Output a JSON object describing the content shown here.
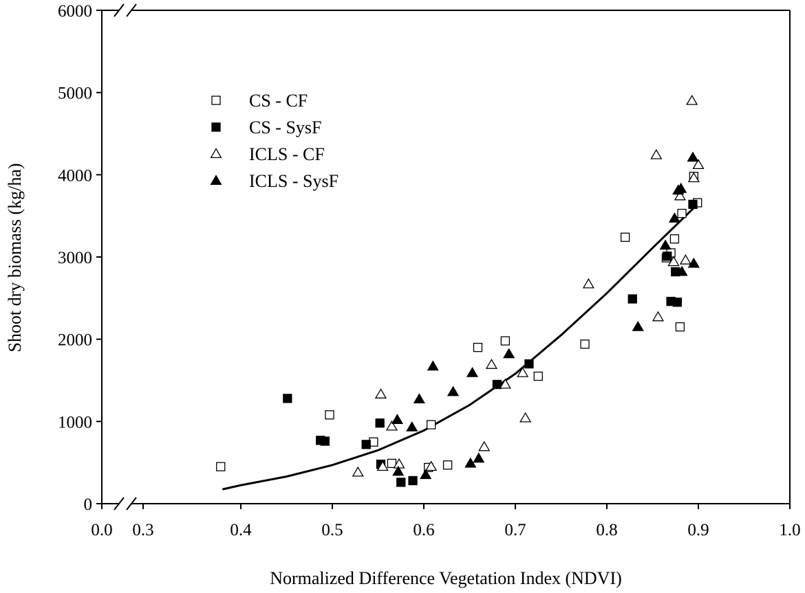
{
  "chart_data": {
    "type": "scatter",
    "title": "",
    "xlabel": "Normalized Difference Vegetation Index (NDVI)",
    "ylabel": "Shoot dry biomass (kg/ha)",
    "xlim": [
      0.0,
      1.0
    ],
    "ylim": [
      0,
      6000
    ],
    "axis_break": {
      "x": "between 0.0 and 0.3",
      "y": "near 0 and near 6000"
    },
    "x_ticks": [
      0.0,
      0.3,
      0.4,
      0.5,
      0.6,
      0.7,
      0.8,
      0.9,
      1.0
    ],
    "x_tick_labels": [
      "0.0",
      "0.3",
      "0.4",
      "0.5",
      "0.6",
      "0.7",
      "0.8",
      "0.9",
      "1.0"
    ],
    "y_ticks": [
      0,
      1000,
      2000,
      3000,
      4000,
      5000,
      6000
    ],
    "y_tick_labels": [
      "0",
      "1000",
      "2000",
      "3000",
      "4000",
      "5000",
      "6000"
    ],
    "grid": false,
    "legend_position": "top-left",
    "series": [
      {
        "name": "CS - CF",
        "marker": "square",
        "fill": "open",
        "points": [
          [
            0.378,
            450
          ],
          [
            0.497,
            1080
          ],
          [
            0.545,
            750
          ],
          [
            0.565,
            490
          ],
          [
            0.605,
            440
          ],
          [
            0.608,
            960
          ],
          [
            0.626,
            470
          ],
          [
            0.659,
            1900
          ],
          [
            0.689,
            1980
          ],
          [
            0.725,
            1550
          ],
          [
            0.776,
            1940
          ],
          [
            0.82,
            3240
          ],
          [
            0.865,
            2990
          ],
          [
            0.87,
            3050
          ],
          [
            0.874,
            3220
          ],
          [
            0.88,
            2150
          ],
          [
            0.882,
            3530
          ],
          [
            0.895,
            3980
          ],
          [
            0.899,
            3660
          ]
        ]
      },
      {
        "name": "CS - SysF",
        "marker": "square",
        "fill": "filled",
        "points": [
          [
            0.451,
            1280
          ],
          [
            0.487,
            770
          ],
          [
            0.492,
            760
          ],
          [
            0.537,
            720
          ],
          [
            0.552,
            980
          ],
          [
            0.553,
            480
          ],
          [
            0.575,
            260
          ],
          [
            0.588,
            280
          ],
          [
            0.68,
            1450
          ],
          [
            0.715,
            1700
          ],
          [
            0.828,
            2490
          ],
          [
            0.866,
            3010
          ],
          [
            0.87,
            2460
          ],
          [
            0.875,
            2820
          ],
          [
            0.877,
            2450
          ],
          [
            0.894,
            3640
          ]
        ]
      },
      {
        "name": "ICLS - CF",
        "marker": "triangle",
        "fill": "open",
        "points": [
          [
            0.528,
            380
          ],
          [
            0.553,
            1330
          ],
          [
            0.555,
            450
          ],
          [
            0.565,
            940
          ],
          [
            0.573,
            480
          ],
          [
            0.608,
            450
          ],
          [
            0.666,
            690
          ],
          [
            0.674,
            1690
          ],
          [
            0.689,
            1450
          ],
          [
            0.708,
            1590
          ],
          [
            0.711,
            1040
          ],
          [
            0.78,
            2670
          ],
          [
            0.854,
            4240
          ],
          [
            0.856,
            2270
          ],
          [
            0.873,
            2940
          ],
          [
            0.88,
            3740
          ],
          [
            0.886,
            2960
          ],
          [
            0.893,
            4900
          ],
          [
            0.895,
            3960
          ],
          [
            0.9,
            4120
          ]
        ]
      },
      {
        "name": "ICLS - SysF",
        "marker": "triangle",
        "fill": "filled",
        "points": [
          [
            0.571,
            1020
          ],
          [
            0.572,
            390
          ],
          [
            0.587,
            930
          ],
          [
            0.595,
            1270
          ],
          [
            0.602,
            350
          ],
          [
            0.61,
            1670
          ],
          [
            0.632,
            1360
          ],
          [
            0.651,
            490
          ],
          [
            0.653,
            1590
          ],
          [
            0.66,
            550
          ],
          [
            0.693,
            1820
          ],
          [
            0.834,
            2150
          ],
          [
            0.864,
            3140
          ],
          [
            0.874,
            3470
          ],
          [
            0.878,
            3810
          ],
          [
            0.881,
            3830
          ],
          [
            0.882,
            2820
          ],
          [
            0.894,
            4210
          ],
          [
            0.895,
            2920
          ]
        ]
      }
    ],
    "trend_line": {
      "type": "exponential fit",
      "points": [
        [
          0.38,
          175
        ],
        [
          0.4,
          225
        ],
        [
          0.45,
          330
        ],
        [
          0.5,
          470
        ],
        [
          0.55,
          650
        ],
        [
          0.6,
          890
        ],
        [
          0.65,
          1200
        ],
        [
          0.7,
          1580
        ],
        [
          0.75,
          2050
        ],
        [
          0.8,
          2560
        ],
        [
          0.85,
          3110
        ],
        [
          0.9,
          3650
        ]
      ]
    }
  }
}
